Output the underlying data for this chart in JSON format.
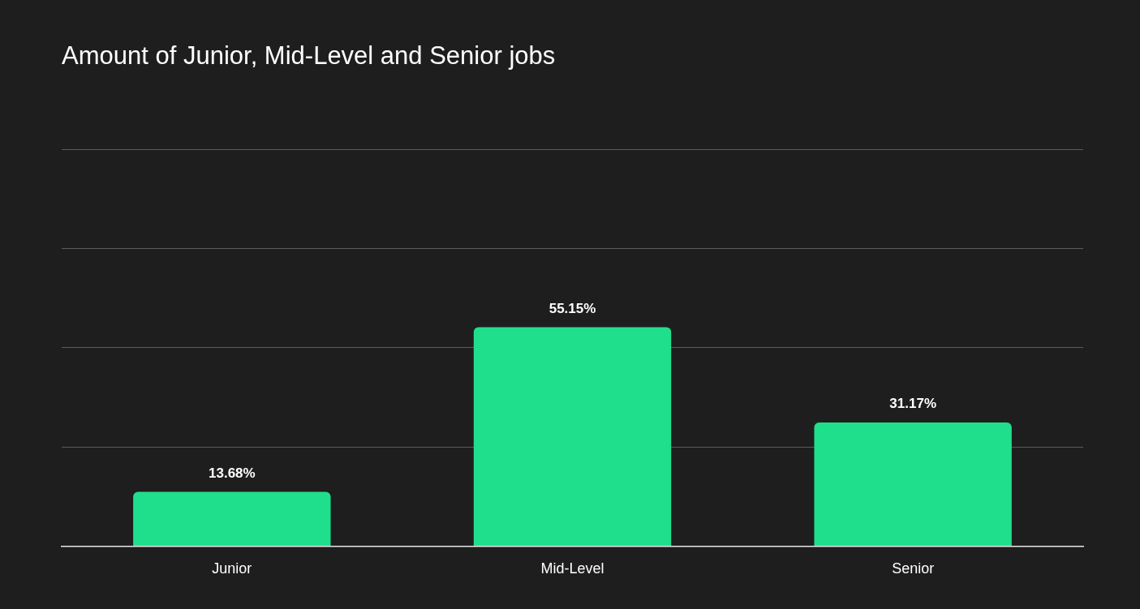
{
  "chart_data": {
    "type": "bar",
    "title": "Amount of Junior, Mid-Level and Senior jobs",
    "categories": [
      "Junior",
      "Mid-Level",
      "Senior"
    ],
    "values": [
      13.68,
      55.15,
      31.17
    ],
    "value_labels": [
      "13.68%",
      "55.15%",
      "31.17%"
    ],
    "color": "#20df8c",
    "ylim": [
      0,
      100
    ],
    "yticks": [
      {
        "value": 0,
        "label": null
      },
      {
        "value": 25,
        "label": null
      },
      {
        "value": 50,
        "label": null
      },
      {
        "value": 75,
        "label": null
      },
      {
        "value": 100,
        "label": null
      }
    ],
    "grid": "y",
    "tick_labels": "x",
    "legend": false
  }
}
